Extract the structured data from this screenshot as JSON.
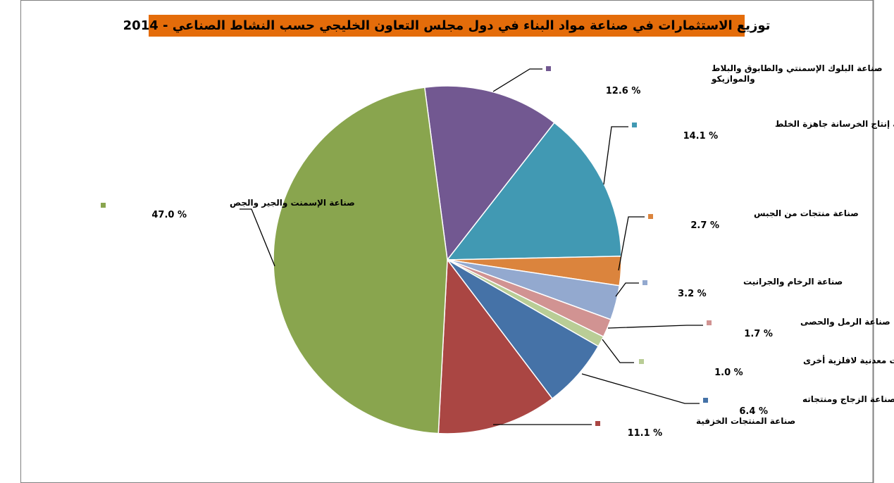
{
  "chart_data": {
    "type": "pie",
    "title": "توزيع الاستثمارات في صناعة مواد البناء في دول مجلس التعاون الخليجي حسب النشاط الصناعي -  2014",
    "unit_suffix": " %",
    "slices": [
      {
        "label": "صناعة البلوك الإسمنتي والطابوق والبلاط والموازيكو",
        "label_lines": [
          "صناعة البلوك الإسمنتي والطابوق والبلاط",
          "والموازيكو"
        ],
        "value": 12.6,
        "value_text": "12.6 %",
        "color": "#725891"
      },
      {
        "label": "صناعة إنتاج الخرسانة جاهزة الخلط",
        "label_lines": [
          "صناعة إنتاج الخرسانة جاهزة الخلط"
        ],
        "value": 14.1,
        "value_text": "14.1 %",
        "color": "#4199b3"
      },
      {
        "label": "صناعة منتجات من الجبس",
        "label_lines": [
          "صناعة منتجات من الجبس"
        ],
        "value": 2.7,
        "value_text": "2.7 %",
        "color": "#db843d"
      },
      {
        "label": "صناعة الرخام والجرانيت",
        "label_lines": [
          "صناعة الرخام والجرانيت"
        ],
        "value": 3.2,
        "value_text": "3.2 %",
        "color": "#93a9cf"
      },
      {
        "label": "صناعة الرمل والحصى",
        "label_lines": [
          "صناعة الرمل والحصى"
        ],
        "value": 1.7,
        "value_text": "1.7 %",
        "color": "#d19392"
      },
      {
        "label": "صناعة منتجات معدنية لافلزية أخرى",
        "label_lines": [
          "صناعة منتجات معدنية لافلزية أخرى"
        ],
        "value": 1.0,
        "value_text": "1.0 %",
        "color": "#b9cd96"
      },
      {
        "label": "صناعة الزجاج ومنتجاته",
        "label_lines": [
          "صناعة الزجاج ومنتجاته"
        ],
        "value": 6.4,
        "value_text": "6.4 %",
        "color": "#4572a7"
      },
      {
        "label": "صناعة المنتجات الخزفية",
        "label_lines": [
          "صناعة المنتجات الخزفية"
        ],
        "value": 11.1,
        "value_text": "11.1 %",
        "color": "#aa4643"
      },
      {
        "label": "صناعة الإسمنت والجير والجص",
        "label_lines": [
          "صناعة الإسمنت والجير والجص"
        ],
        "value": 47.0,
        "value_text": "47.0 %",
        "color": "#89a54e"
      }
    ],
    "legend": "callout-labels",
    "start_angle_deg": -7.5
  }
}
